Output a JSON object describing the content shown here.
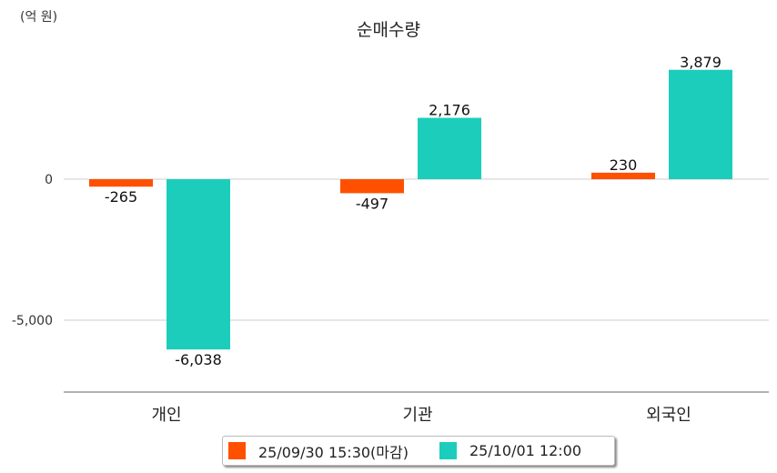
{
  "chart_data": {
    "type": "bar",
    "title": "순매수량",
    "unit_label": "(억 원)",
    "categories": [
      "개인",
      "기관",
      "외국인"
    ],
    "series": [
      {
        "name": "25/09/30 15:30(마감)",
        "color": "#ff5000",
        "values": [
          -265,
          -497,
          230
        ],
        "labels": [
          "-265",
          "-497",
          "230"
        ]
      },
      {
        "name": "25/10/01 12:00",
        "color": "#1ccdbc",
        "values": [
          -6038,
          2176,
          3879
        ],
        "labels": [
          "-6,038",
          "2,176",
          "3,879"
        ]
      }
    ],
    "yticks": [
      0,
      -5000
    ],
    "ytick_labels": [
      "0",
      "-5,000"
    ],
    "ylim": [
      -7550,
      5000
    ],
    "grid": true,
    "legend": "bottom-center"
  }
}
